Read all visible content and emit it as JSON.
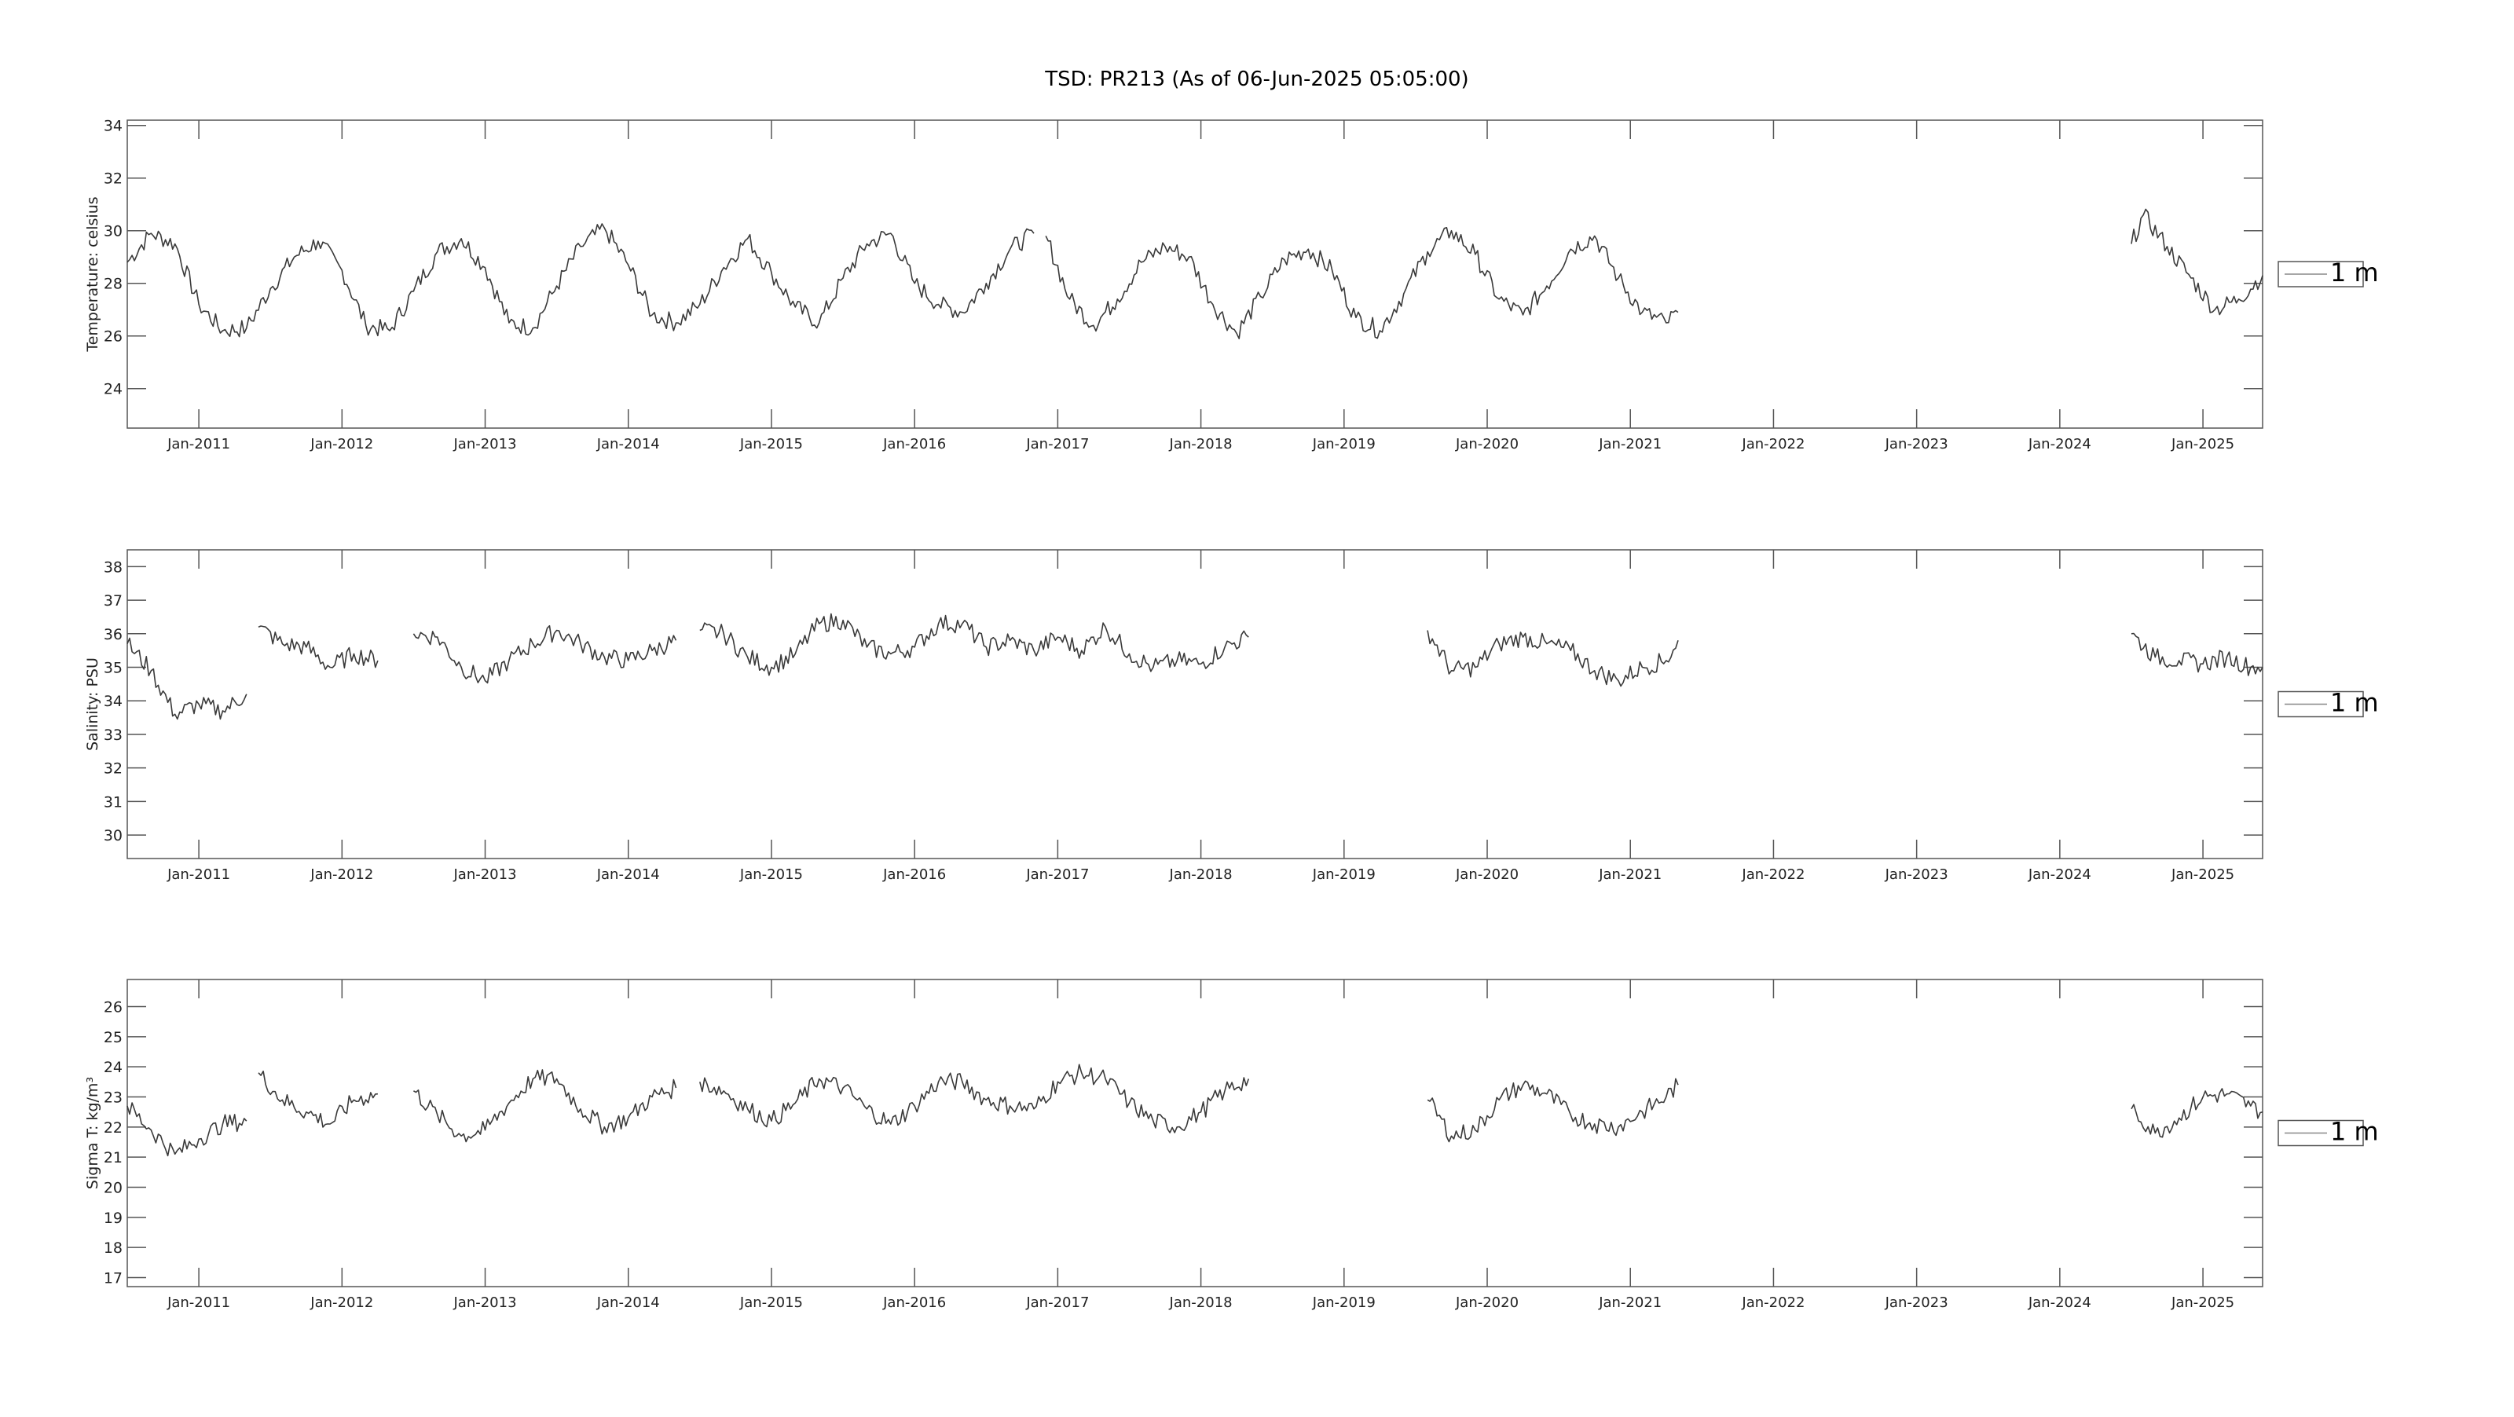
{
  "title": "TSD: PR213 (As of 06-Jun-2025 05:05:00)",
  "colors": {
    "line": "#3a3a3a",
    "axis": "#555555",
    "background": "#ffffff"
  },
  "chart_data": [
    {
      "type": "line",
      "ylabel": "Temperature:  celsius",
      "ylim": [
        22.5,
        34.2
      ],
      "yticks": [
        "24",
        "26",
        "28",
        "30",
        "32",
        "34"
      ],
      "xlim": [
        "2010-07",
        "2025-06"
      ],
      "xticks": [
        "Jan-2011",
        "Jan-2012",
        "Jan-2013",
        "Jan-2014",
        "Jan-2015",
        "Jan-2016",
        "Jan-2017",
        "Jan-2018",
        "Jan-2019",
        "Jan-2020",
        "Jan-2021",
        "Jan-2022",
        "Jan-2023",
        "Jan-2024",
        "Jan-2025"
      ],
      "legend": {
        "label": "1 m",
        "position": "outside-right"
      },
      "series": [
        {
          "name": "1 m",
          "segments": [
            {
              "x": [
                "2010-07",
                "2010-09",
                "2010-11",
                "2011-01",
                "2011-03",
                "2011-05",
                "2011-07",
                "2011-09",
                "2011-11",
                "2012-01",
                "2012-03",
                "2012-05",
                "2012-07",
                "2012-09",
                "2012-11",
                "2013-01",
                "2013-03",
                "2013-05",
                "2013-07",
                "2013-09",
                "2013-11",
                "2014-01",
                "2014-03",
                "2014-05",
                "2014-07",
                "2014-09",
                "2014-11",
                "2015-01",
                "2015-03",
                "2015-05",
                "2015-07",
                "2015-09",
                "2015-11",
                "2016-01",
                "2016-03",
                "2016-05",
                "2016-07",
                "2016-09",
                "2016-11"
              ],
              "y": [
                28.8,
                29.9,
                29.5,
                27.2,
                26.2,
                26.3,
                27.8,
                29.0,
                29.6,
                28.5,
                26.4,
                26.2,
                27.7,
                29.2,
                29.7,
                28.6,
                26.5,
                26.3,
                27.9,
                29.4,
                30.1,
                28.7,
                26.8,
                26.5,
                27.2,
                28.6,
                29.7,
                28.4,
                27.1,
                26.5,
                28.2,
                29.5,
                29.9,
                28.0,
                27.2,
                26.9,
                28.0,
                29.3,
                29.9
              ]
            },
            {
              "x": [
                "2016-12",
                "2017-02",
                "2017-04",
                "2017-06",
                "2017-08",
                "2017-10",
                "2017-12",
                "2018-02",
                "2018-04",
                "2018-06",
                "2018-08",
                "2018-10",
                "2018-12",
                "2019-02",
                "2019-04",
                "2019-06",
                "2019-08",
                "2019-10",
                "2019-12",
                "2020-02",
                "2020-04",
                "2020-06",
                "2020-08",
                "2020-10",
                "2020-12",
                "2021-02",
                "2021-04",
                "2021-05"
              ],
              "y": [
                29.8,
                27.4,
                26.4,
                27.4,
                28.8,
                29.4,
                29.0,
                27.2,
                26.1,
                27.5,
                28.9,
                29.3,
                28.5,
                26.7,
                26.2,
                27.6,
                29.2,
                30.0,
                29.1,
                27.4,
                26.8,
                27.9,
                29.3,
                29.8,
                28.2,
                26.9,
                26.5,
                26.9
              ]
            },
            {
              "x": [
                "2024-07",
                "2024-08",
                "2024-10",
                "2024-12",
                "2025-02",
                "2025-04",
                "2025-06"
              ],
              "y": [
                29.5,
                30.6,
                29.4,
                28.2,
                27.0,
                27.4,
                28.3
              ]
            }
          ]
        }
      ]
    },
    {
      "type": "line",
      "ylabel": "Salinity:  PSU",
      "ylim": [
        29.3,
        38.5
      ],
      "yticks": [
        "30",
        "31",
        "32",
        "33",
        "34",
        "35",
        "36",
        "37",
        "38"
      ],
      "xlim": [
        "2010-07",
        "2025-06"
      ],
      "xticks": [
        "Jan-2011",
        "Jan-2012",
        "Jan-2013",
        "Jan-2014",
        "Jan-2015",
        "Jan-2016",
        "Jan-2017",
        "Jan-2018",
        "Jan-2019",
        "Jan-2020",
        "Jan-2021",
        "Jan-2022",
        "Jan-2023",
        "Jan-2024",
        "Jan-2025"
      ],
      "legend": {
        "label": "1 m",
        "position": "outside-right"
      },
      "series": [
        {
          "name": "1 m",
          "segments": [
            {
              "x": [
                "2010-07",
                "2010-09",
                "2010-11",
                "2011-01",
                "2011-03",
                "2011-05"
              ],
              "y": [
                35.7,
                34.9,
                33.6,
                33.9,
                33.7,
                34.2
              ]
            },
            {
              "x": [
                "2011-06",
                "2011-08",
                "2011-10",
                "2011-12",
                "2012-02",
                "2012-04"
              ],
              "y": [
                36.2,
                35.7,
                35.6,
                35.0,
                35.4,
                35.2
              ]
            },
            {
              "x": [
                "2012-07",
                "2012-09",
                "2012-11",
                "2013-01",
                "2013-03",
                "2013-05",
                "2013-07",
                "2013-09",
                "2013-11",
                "2014-01",
                "2014-03",
                "2014-05"
              ],
              "y": [
                36.0,
                35.9,
                35.0,
                34.6,
                35.2,
                35.7,
                36.1,
                35.7,
                35.3,
                35.2,
                35.5,
                35.8
              ]
            },
            {
              "x": [
                "2014-07",
                "2014-09",
                "2014-11",
                "2015-01",
                "2015-03",
                "2015-05",
                "2015-07",
                "2015-09",
                "2015-11",
                "2016-01",
                "2016-03",
                "2016-05",
                "2016-07",
                "2016-09",
                "2016-11",
                "2017-01",
                "2017-03",
                "2017-05",
                "2017-07",
                "2017-09",
                "2017-11",
                "2018-01",
                "2018-03",
                "2018-05"
              ],
              "y": [
                36.1,
                36.0,
                35.3,
                35.0,
                35.4,
                36.3,
                36.4,
                35.6,
                35.4,
                35.6,
                36.3,
                36.3,
                35.6,
                35.8,
                35.5,
                35.9,
                35.5,
                36.2,
                35.4,
                35.0,
                35.2,
                35.1,
                35.6,
                35.9
              ]
            },
            {
              "x": [
                "2019-08",
                "2019-10",
                "2019-12",
                "2020-02",
                "2020-04",
                "2020-06",
                "2020-08",
                "2020-10",
                "2020-12",
                "2021-02",
                "2021-04",
                "2021-05"
              ],
              "y": [
                36.1,
                34.9,
                35.0,
                35.7,
                35.9,
                35.7,
                35.5,
                34.9,
                34.6,
                35.0,
                35.2,
                35.8
              ]
            },
            {
              "x": [
                "2024-07",
                "2024-09",
                "2024-11",
                "2025-01",
                "2025-03",
                "2025-05",
                "2025-06"
              ],
              "y": [
                36.0,
                35.3,
                35.2,
                35.1,
                35.3,
                35.0,
                35.0
              ]
            }
          ]
        }
      ]
    },
    {
      "type": "line",
      "ylabel": "Sigma T:  kg/m³",
      "ylim": [
        16.7,
        26.9
      ],
      "yticks": [
        "17",
        "18",
        "19",
        "20",
        "21",
        "22",
        "23",
        "24",
        "25",
        "26"
      ],
      "xlim": [
        "2010-07",
        "2025-06"
      ],
      "xticks": [
        "Jan-2011",
        "Jan-2012",
        "Jan-2013",
        "Jan-2014",
        "Jan-2015",
        "Jan-2016",
        "Jan-2017",
        "Jan-2018",
        "Jan-2019",
        "Jan-2020",
        "Jan-2021",
        "Jan-2022",
        "Jan-2023",
        "Jan-2024",
        "Jan-2025"
      ],
      "legend": {
        "label": "1 m",
        "position": "outside-right"
      },
      "series": [
        {
          "name": "1 m",
          "segments": [
            {
              "x": [
                "2010-07",
                "2010-09",
                "2010-11",
                "2011-01",
                "2011-03",
                "2011-05"
              ],
              "y": [
                22.7,
                21.9,
                21.1,
                21.6,
                22.1,
                22.2
              ]
            },
            {
              "x": [
                "2011-06",
                "2011-08",
                "2011-10",
                "2011-12",
                "2012-02",
                "2012-04"
              ],
              "y": [
                23.8,
                22.9,
                22.5,
                22.1,
                22.9,
                23.1
              ]
            },
            {
              "x": [
                "2012-07",
                "2012-09",
                "2012-11",
                "2013-01",
                "2013-03",
                "2013-05",
                "2013-07",
                "2013-09",
                "2013-11",
                "2014-01",
                "2014-03",
                "2014-05"
              ],
              "y": [
                23.2,
                22.4,
                21.7,
                21.9,
                22.8,
                23.6,
                23.6,
                22.6,
                22.0,
                22.3,
                23.0,
                23.3
              ]
            },
            {
              "x": [
                "2014-07",
                "2014-09",
                "2014-11",
                "2015-01",
                "2015-03",
                "2015-05",
                "2015-07",
                "2015-09",
                "2015-11",
                "2016-01",
                "2016-03",
                "2016-05",
                "2016-07",
                "2016-09",
                "2016-11",
                "2017-01",
                "2017-03",
                "2017-05",
                "2017-07",
                "2017-09",
                "2017-11",
                "2018-01",
                "2018-03",
                "2018-05"
              ],
              "y": [
                23.5,
                23.2,
                22.6,
                22.2,
                22.8,
                23.6,
                23.3,
                22.6,
                22.1,
                22.7,
                23.5,
                23.5,
                22.9,
                22.7,
                22.6,
                23.5,
                23.8,
                23.6,
                22.8,
                22.2,
                22.0,
                22.5,
                23.2,
                23.6
              ]
            },
            {
              "x": [
                "2019-08",
                "2019-10",
                "2019-12",
                "2020-02",
                "2020-04",
                "2020-06",
                "2020-08",
                "2020-10",
                "2020-12",
                "2021-02",
                "2021-04",
                "2021-05"
              ],
              "y": [
                22.9,
                21.7,
                21.9,
                22.9,
                23.4,
                23.1,
                22.4,
                22.1,
                22.0,
                22.5,
                23.0,
                23.4
              ]
            },
            {
              "x": [
                "2024-07",
                "2024-09",
                "2024-11",
                "2025-01",
                "2025-03",
                "2025-05",
                "2025-06"
              ],
              "y": [
                22.6,
                21.8,
                22.3,
                23.0,
                23.1,
                22.7,
                22.5
              ]
            }
          ]
        }
      ]
    }
  ]
}
